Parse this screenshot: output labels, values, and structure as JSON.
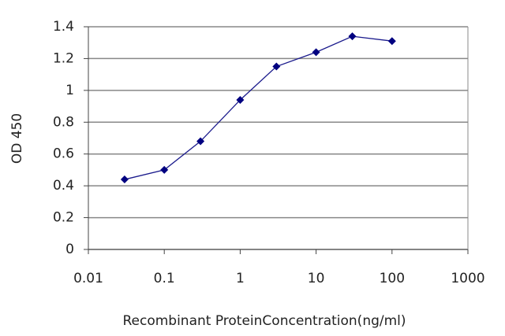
{
  "chart_data": {
    "type": "line",
    "xscale": "log",
    "marker": "diamond",
    "grid": true,
    "color": "#1a1a8c",
    "x_label": "Recombinant ProteinConcentration(ng/ml)",
    "y_label": "OD 450",
    "x": [
      0.03,
      0.1,
      0.3,
      1,
      3,
      10,
      30,
      100
    ],
    "values": [
      0.44,
      0.5,
      0.68,
      0.94,
      1.15,
      1.24,
      1.34,
      1.31
    ],
    "xlim": [
      0.01,
      1000
    ],
    "xticks": [
      0.01,
      0.1,
      1,
      10,
      100,
      1000
    ],
    "ylim": [
      0,
      1.4
    ],
    "yticks": [
      0,
      0.2,
      0.4,
      0.6,
      0.8,
      1,
      1.2,
      1.4
    ]
  }
}
